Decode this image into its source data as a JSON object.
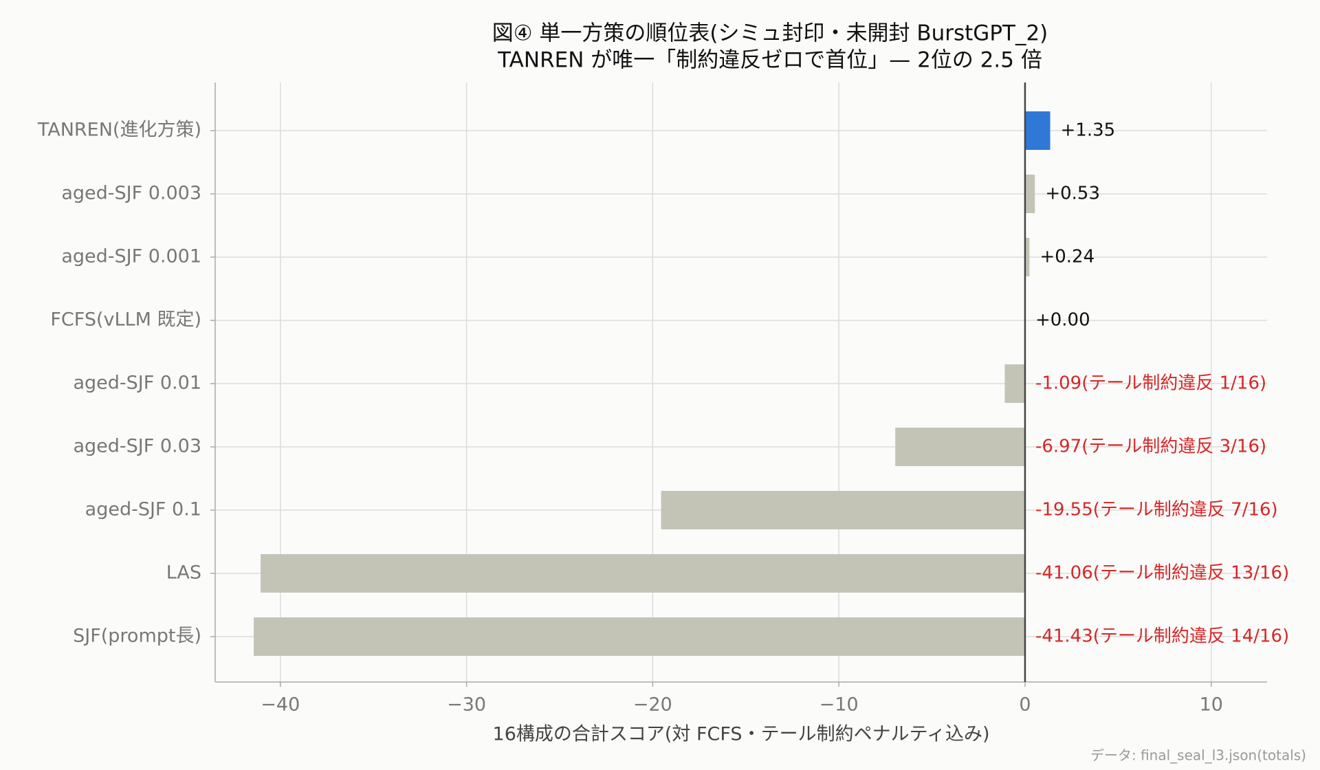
{
  "chart_data": {
    "type": "barh",
    "title": "図④ 単一方策の順位表(シミュ封印・未開封 BurstGPT_2)",
    "subtitle": "TANREN が唯一「制約違反ゼロで首位」— 2位の 2.5 倍",
    "x_label": "16構成の合計スコア(対 FCFS・テール制約ペナルティ込み)",
    "source": "データ: final_seal_l3.json(totals)",
    "categories": [
      "TANREN(進化方策)",
      "aged-SJF 0.003",
      "aged-SJF 0.001",
      "FCFS(vLLM 既定)",
      "aged-SJF 0.01",
      "aged-SJF 0.03",
      "aged-SJF 0.1",
      "LAS",
      "SJF(prompt長)"
    ],
    "values": [
      1.35,
      0.53,
      0.24,
      0.0,
      -1.09,
      -6.97,
      -19.55,
      -41.06,
      -41.43
    ],
    "value_labels": [
      "+1.35",
      "+0.53",
      "+0.24",
      "+0.00",
      "-1.09(テール制約違反 1/16)",
      "-6.97(テール制約違反 3/16)",
      "-19.55(テール制約違反 7/16)",
      "-41.06(テール制約違反 13/16)",
      "-41.43(テール制約違反 14/16)"
    ],
    "colors": [
      "#2f78d8",
      "#c4c4b6",
      "#c4c4b6",
      "#c4c4b6",
      "#c4c4b6",
      "#c4c4b6",
      "#c4c4b6",
      "#c4c4b6",
      "#c4c4b6"
    ],
    "positive_label_color": "#111111",
    "negative_label_color": "#d62728",
    "xlim": [
      -43.5,
      13
    ],
    "xticks": [
      {
        "value": -40,
        "label": "−40"
      },
      {
        "value": -30,
        "label": "−30"
      },
      {
        "value": -20,
        "label": "−20"
      },
      {
        "value": -10,
        "label": "−10"
      },
      0,
      10
    ],
    "grid": true
  }
}
